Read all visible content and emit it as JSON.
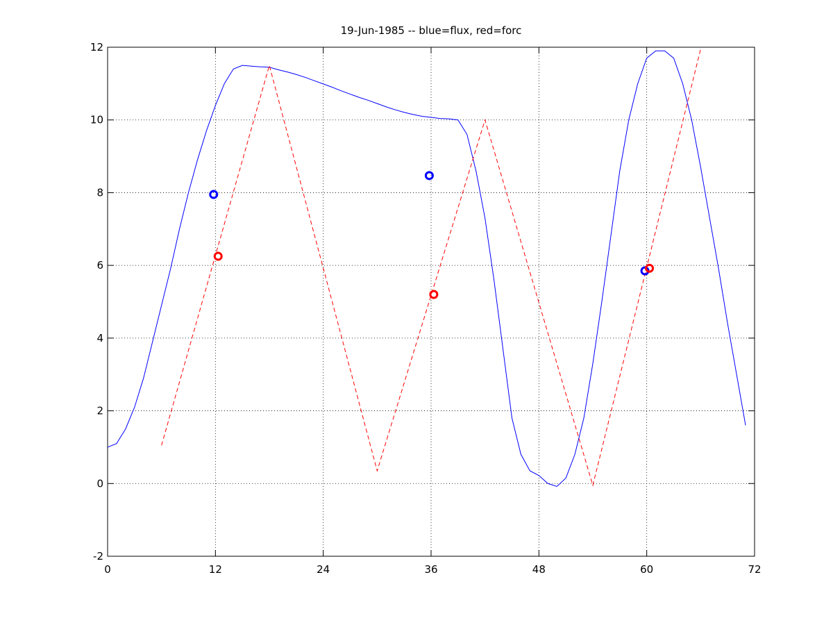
{
  "chart_data": {
    "type": "line",
    "title": "19-Jun-1985 -- blue=flux, red=forc",
    "xlim": [
      0,
      72
    ],
    "ylim": [
      -2,
      12
    ],
    "xticks": [
      0,
      12,
      24,
      36,
      48,
      60,
      72
    ],
    "yticks": [
      -2,
      0,
      2,
      4,
      6,
      8,
      10,
      12
    ],
    "grid": true,
    "series": [
      {
        "kind": "line",
        "color": "#0000ff",
        "dashed": false,
        "x": [
          0,
          1,
          2,
          3,
          4,
          5,
          6,
          7,
          8,
          9,
          10,
          11,
          12,
          13,
          14,
          15,
          16,
          17,
          18,
          19,
          20,
          21,
          22,
          23,
          24,
          25,
          26,
          27,
          28,
          29,
          30,
          31,
          32,
          33,
          34,
          35,
          36,
          37,
          38,
          39,
          40,
          41,
          42,
          43,
          44,
          45,
          46,
          47,
          48,
          49,
          50,
          51,
          52,
          53,
          54,
          55,
          56,
          57,
          58,
          59,
          60,
          61,
          62,
          63,
          64,
          65,
          66,
          67,
          68,
          69,
          70,
          71
        ],
        "values": [
          1.0,
          1.1,
          1.5,
          2.1,
          2.9,
          3.9,
          4.9,
          5.9,
          7.0,
          8.0,
          8.9,
          9.7,
          10.4,
          11.0,
          11.4,
          11.5,
          11.48,
          11.46,
          11.45,
          11.38,
          11.32,
          11.25,
          11.17,
          11.08,
          10.99,
          10.9,
          10.8,
          10.71,
          10.62,
          10.54,
          10.45,
          10.36,
          10.28,
          10.21,
          10.15,
          10.1,
          10.07,
          10.04,
          10.03,
          10.0,
          9.6,
          8.6,
          7.3,
          5.6,
          3.7,
          1.8,
          0.8,
          0.35,
          0.22,
          0.0,
          -0.08,
          0.15,
          0.8,
          1.8,
          3.3,
          5.0,
          6.8,
          8.6,
          10.0,
          11.0,
          11.7,
          11.9,
          11.9,
          11.7,
          11.0,
          10.0,
          8.7,
          7.3,
          5.9,
          4.4,
          3.0,
          1.6
        ]
      },
      {
        "kind": "line",
        "color": "#ff0000",
        "dashed": true,
        "x": [
          6,
          18,
          30,
          42,
          54,
          66
        ],
        "values": [
          1.05,
          11.5,
          0.35,
          10.0,
          -0.05,
          11.95
        ]
      },
      {
        "kind": "scatter",
        "color": "#0000ff",
        "x": [
          11.8,
          35.8,
          59.8
        ],
        "values": [
          7.95,
          8.47,
          5.85
        ]
      },
      {
        "kind": "scatter",
        "color": "#ff0000",
        "x": [
          12.3,
          36.3,
          60.3
        ],
        "values": [
          6.25,
          5.2,
          5.92
        ]
      }
    ]
  }
}
